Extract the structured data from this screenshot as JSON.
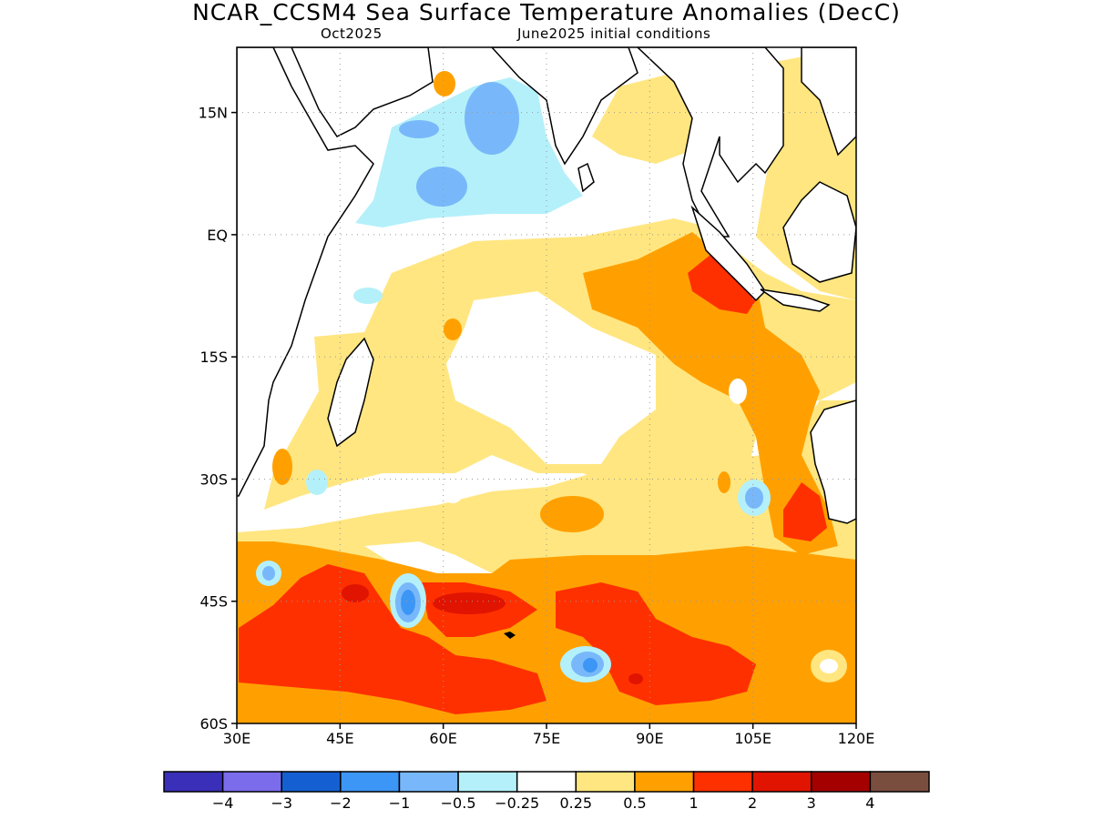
{
  "title": "NCAR_CCSM4 Sea Surface Temperature Anomalies (DecC)",
  "subtitle_left": "Oct2025",
  "subtitle_right": "June2025 initial conditions",
  "map": {
    "lat_range": [
      -60,
      23
    ],
    "lon_range": [
      30,
      120
    ],
    "y_ticks": [
      {
        "lat": 15,
        "label": "15N"
      },
      {
        "lat": 0,
        "label": "EQ"
      },
      {
        "lat": -15,
        "label": "15S"
      },
      {
        "lat": -30,
        "label": "30S"
      },
      {
        "lat": -45,
        "label": "45S"
      },
      {
        "lat": -60,
        "label": "60S"
      }
    ],
    "x_ticks": [
      {
        "lon": 30,
        "label": "30E"
      },
      {
        "lon": 45,
        "label": "45E"
      },
      {
        "lon": 60,
        "label": "60E"
      },
      {
        "lon": 75,
        "label": "75E"
      },
      {
        "lon": 90,
        "label": "90E"
      },
      {
        "lon": 105,
        "label": "105E"
      },
      {
        "lon": 120,
        "label": "120E"
      }
    ],
    "grid": true
  },
  "colorbar": {
    "colors": [
      "#3a2fb8",
      "#7b6cec",
      "#1460d2",
      "#3c96f5",
      "#78b8fa",
      "#b4f0fa",
      "#ffffff",
      "#ffe680",
      "#ffa000",
      "#ff3000",
      "#e01400",
      "#a50000",
      "#7a4e3f"
    ],
    "labels": [
      "−4",
      "−3",
      "−2",
      "−1",
      "−0.5",
      "−0.25",
      "0.25",
      "0.5",
      "1",
      "2",
      "3",
      "4"
    ]
  }
}
